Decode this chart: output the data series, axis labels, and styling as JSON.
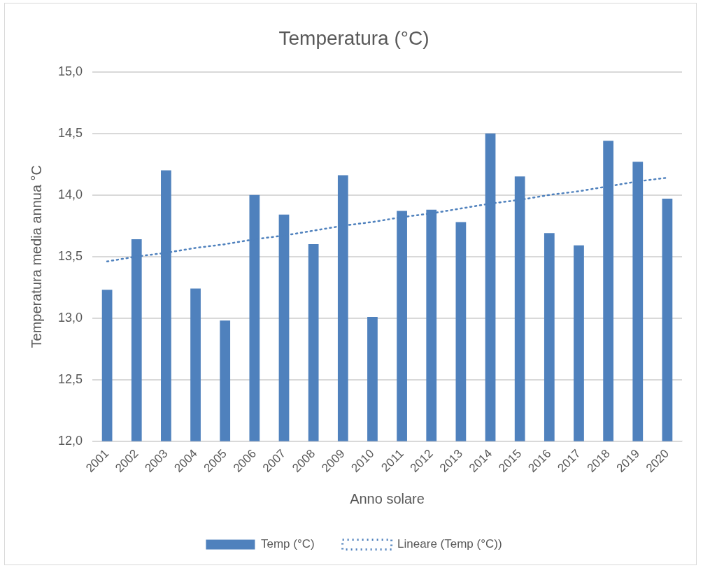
{
  "chart_data": {
    "type": "bar",
    "title": "Temperatura (°C)",
    "xlabel": "Anno solare",
    "ylabel": "Temperatura media annua °C",
    "categories": [
      "2001",
      "2002",
      "2003",
      "2004",
      "2005",
      "2006",
      "2007",
      "2008",
      "2009",
      "2010",
      "2011",
      "2012",
      "2013",
      "2014",
      "2015",
      "2016",
      "2017",
      "2018",
      "2019",
      "2020"
    ],
    "series": [
      {
        "name": "Temp (°C)",
        "color": "#4f81bd",
        "values": [
          13.23,
          13.64,
          14.2,
          13.24,
          12.98,
          14.0,
          13.84,
          13.6,
          14.16,
          13.01,
          13.87,
          13.88,
          13.78,
          14.5,
          14.15,
          13.69,
          13.59,
          14.44,
          14.27,
          13.97
        ]
      },
      {
        "name": "Lineare (Temp (°C))",
        "type": "line",
        "color": "#4f81bd",
        "line_style": "dotted",
        "values": [
          13.46,
          13.5,
          13.53,
          13.57,
          13.6,
          13.64,
          13.67,
          13.71,
          13.75,
          13.78,
          13.82,
          13.85,
          13.89,
          13.93,
          13.96,
          14.0,
          14.03,
          14.07,
          14.11,
          14.14
        ]
      }
    ],
    "ylim": [
      12,
      15
    ],
    "yticks": [
      {
        "value": 12,
        "label": "12,0"
      },
      {
        "value": 12.5,
        "label": "12,5"
      },
      {
        "value": 13,
        "label": "13,0"
      },
      {
        "value": 13.5,
        "label": "13,5"
      },
      {
        "value": 14,
        "label": "14,0"
      },
      {
        "value": 14.5,
        "label": "14,5"
      },
      {
        "value": 15,
        "label": "15,0"
      }
    ],
    "grid": "y",
    "legend": "bottom",
    "marker": "none"
  }
}
